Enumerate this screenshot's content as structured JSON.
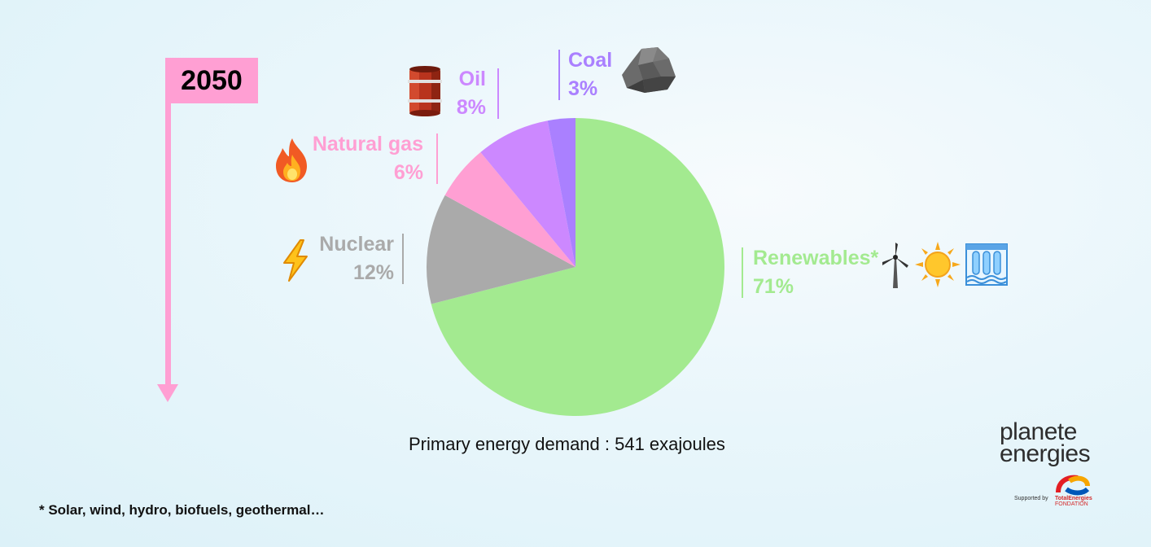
{
  "year_flag": "2050",
  "caption": "Primary energy demand : 541 exajoules",
  "footnote": "* Solar, wind, hydro, biofuels, geothermal…",
  "logo": {
    "line1": "planete",
    "line2": "energies",
    "supported": "Supported by",
    "brand": "TotalEnergies",
    "brand_sub": "FONDATION"
  },
  "chart_data": {
    "type": "pie",
    "title": "",
    "slices": [
      {
        "name": "Renewables*",
        "value": 71,
        "label": "71%",
        "color": "#a3ea90",
        "icon": "wind-turbine-sun-hydro-icons"
      },
      {
        "name": "Nuclear",
        "value": 12,
        "label": "12%",
        "color": "#aaaaaa",
        "icon": "lightning-icon"
      },
      {
        "name": "Natural gas",
        "value": 6,
        "label": "6%",
        "color": "#ff9fd3",
        "icon": "flame-icon"
      },
      {
        "name": "Oil",
        "value": 8,
        "label": "8%",
        "color": "#cc88ff",
        "icon": "oil-barrel-icon"
      },
      {
        "name": "Coal",
        "value": 3,
        "label": "3%",
        "color": "#aa80ff",
        "icon": "coal-rock-icon"
      }
    ]
  }
}
